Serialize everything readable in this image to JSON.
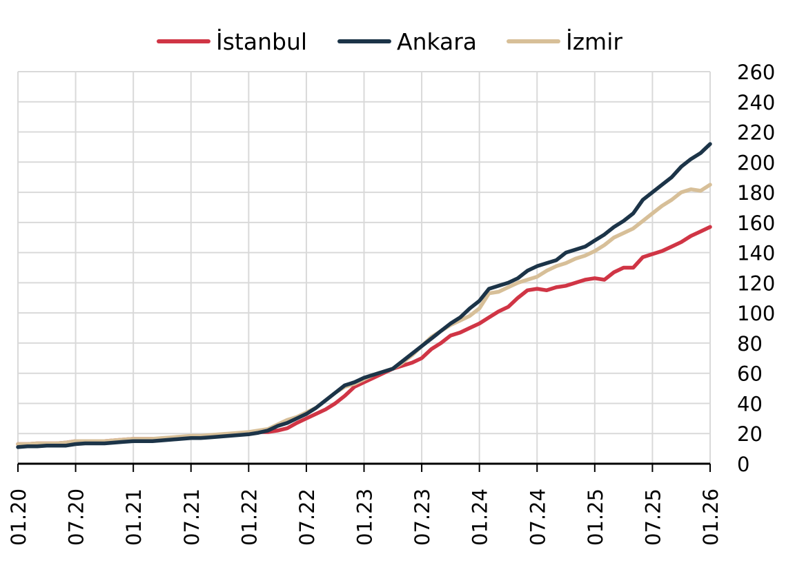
{
  "chart_data": {
    "type": "line",
    "title": "",
    "xlabel": "",
    "ylabel": "",
    "ylim": [
      0,
      260
    ],
    "y_ticks": [
      0,
      20,
      40,
      60,
      80,
      100,
      120,
      140,
      160,
      180,
      200,
      220,
      240,
      260
    ],
    "y_axis_position": "right",
    "x_tick_labels": [
      "01.20",
      "07.20",
      "01.21",
      "07.21",
      "01.22",
      "07.22",
      "01.23",
      "07.23",
      "01.24",
      "07.24",
      "01.25",
      "07.25",
      "01.26"
    ],
    "grid": true,
    "legend_position": "top",
    "x_start": "01.20",
    "x_frequency": "monthly",
    "series": [
      {
        "name": "İstanbul",
        "color": "#d03545",
        "values": [
          13,
          13,
          13.5,
          13.5,
          13.5,
          14,
          15,
          15,
          15,
          15,
          15.5,
          16,
          16.5,
          16.5,
          16.5,
          16.5,
          17,
          17.5,
          18,
          18,
          18.5,
          19,
          19.5,
          20,
          20.5,
          21,
          21,
          22,
          23.5,
          27,
          30,
          33,
          36,
          40,
          45,
          51,
          54,
          57,
          60,
          63,
          65,
          67,
          70,
          76,
          80,
          85,
          87,
          90,
          93,
          97,
          101,
          104,
          110,
          115,
          116,
          115,
          117,
          118,
          120,
          122,
          123,
          122,
          127,
          130,
          130,
          137,
          139,
          141,
          144,
          147,
          151,
          154,
          157
        ]
      },
      {
        "name": "Ankara",
        "color": "#1c3448",
        "values": [
          11,
          11.5,
          11.5,
          12,
          12,
          12,
          13,
          13.5,
          13.5,
          13.5,
          14,
          14.5,
          15,
          15,
          15,
          15.5,
          16,
          16.5,
          17,
          17,
          17.5,
          18,
          18.5,
          19,
          19.5,
          20.5,
          22,
          25,
          27,
          30,
          33,
          37,
          42,
          47,
          52,
          54,
          57,
          59,
          61,
          63,
          68,
          73,
          78,
          83,
          88,
          93,
          97,
          103,
          108,
          116,
          118,
          120,
          123,
          128,
          131,
          133,
          135,
          140,
          142,
          144,
          148,
          152,
          157,
          161,
          166,
          175,
          180,
          185,
          190,
          197,
          202,
          206,
          212
        ]
      },
      {
        "name": "İzmir",
        "color": "#d7bf98",
        "values": [
          13,
          13,
          13.5,
          13.5,
          13.5,
          14,
          15,
          15,
          15,
          15,
          15.5,
          16,
          16.5,
          16.5,
          16.5,
          17,
          17.5,
          18,
          18.5,
          18.5,
          19,
          19.5,
          20,
          20.5,
          21,
          22,
          23,
          26,
          29,
          31,
          34,
          37,
          42,
          47,
          51,
          53,
          56,
          59,
          61,
          63,
          67,
          72,
          78,
          84,
          88,
          92,
          95,
          98,
          103,
          113,
          114,
          117,
          120,
          122,
          124,
          128,
          131,
          133,
          136,
          138,
          141,
          145,
          150,
          153,
          156,
          161,
          166,
          171,
          175,
          180,
          182,
          181,
          185
        ]
      }
    ]
  },
  "legend": {
    "items": [
      {
        "label": "İstanbul",
        "color": "#d03545"
      },
      {
        "label": "Ankara",
        "color": "#1c3448"
      },
      {
        "label": "İzmir",
        "color": "#d7bf98"
      }
    ]
  }
}
